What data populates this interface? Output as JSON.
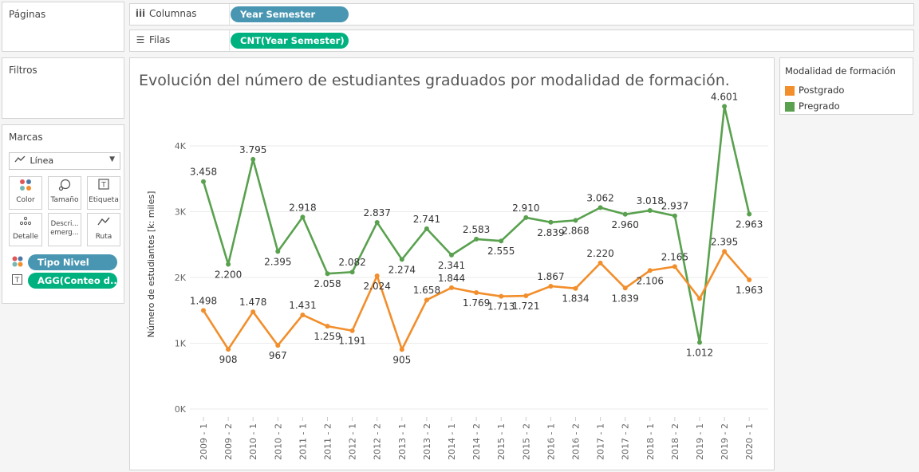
{
  "paginas": {
    "title": "Páginas"
  },
  "filtros": {
    "title": "Filtros"
  },
  "marcas": {
    "title": "Marcas",
    "mark_type": "Línea",
    "buttons": [
      {
        "icon": "color-icon",
        "label": "Color"
      },
      {
        "icon": "size-icon",
        "label": "Tamaño"
      },
      {
        "icon": "label-icon",
        "label": "Etiqueta"
      },
      {
        "icon": "detail-icon",
        "label": "Detalle"
      },
      {
        "icon": "tooltip-icon",
        "label": "Descri... emerg..."
      },
      {
        "icon": "path-icon",
        "label": "Ruta"
      }
    ],
    "fields": [
      {
        "icon": "color-icon",
        "label": "Tipo Nivel",
        "color": "#4996b2"
      },
      {
        "icon": "label-icon",
        "label": "AGG(Conteo d..",
        "color": "#00b180"
      }
    ]
  },
  "columnas": {
    "label": "Columnas",
    "pill": "Year Semester",
    "pill_color": "#4996b2"
  },
  "filas": {
    "label": "Filas",
    "pill": "CNT(Year Semester)",
    "pill_color": "#00b180"
  },
  "legend": {
    "title": "Modalidad de formación",
    "items": [
      {
        "label": "Postgrado",
        "color": "#f28e2b"
      },
      {
        "label": "Pregrado",
        "color": "#59a14f"
      }
    ]
  },
  "chart_data": {
    "type": "line",
    "title": "Evolución del número de estudiantes graduados por modalidad de formación.",
    "ylabel": "Número de estudiantes  [k: miles]",
    "xlabel": "",
    "ylim": [
      0,
      4800
    ],
    "yticks": [
      0,
      1000,
      2000,
      3000,
      4000
    ],
    "ytick_labels": [
      "0K",
      "1K",
      "2K",
      "3K",
      "4K"
    ],
    "grid": true,
    "legend_position": "right",
    "categories": [
      "2009 - 1",
      "2009 - 2",
      "2010 - 1",
      "2010 - 2",
      "2011 - 1",
      "2011 - 2",
      "2012 - 1",
      "2012 - 2",
      "2013 - 1",
      "2013 - 2",
      "2014 - 1",
      "2014 - 2",
      "2015 - 1",
      "2015 - 2",
      "2016 - 1",
      "2016 - 2",
      "2017 - 1",
      "2017 - 2",
      "2018 - 1",
      "2018 - 2",
      "2019 - 1",
      "2019 - 2",
      "2020 - 1"
    ],
    "series": [
      {
        "name": "Pregrado",
        "color": "#59a14f",
        "values": [
          3458,
          2200,
          3795,
          2395,
          2918,
          2058,
          2082,
          2837,
          2274,
          2741,
          2341,
          2583,
          2555,
          2910,
          2839,
          2868,
          3062,
          2960,
          3018,
          2937,
          1012,
          4601,
          2963
        ],
        "labels": [
          "3.458",
          "2.200",
          "3.795",
          "2.395",
          "2.918",
          "2.058",
          "2.082",
          "2.837",
          "2.274",
          "2.741",
          "2.341",
          "2.583",
          "2.555",
          "2.910",
          "2.839",
          "2.868",
          "3.062",
          "2.960",
          "3.018",
          "2.937",
          "1.012",
          "4.601",
          "2.963"
        ],
        "label_pos": [
          "above",
          "below",
          "above",
          "below",
          "above",
          "below",
          "above",
          "above",
          "below",
          "above",
          "below",
          "above",
          "below",
          "above",
          "below",
          "below",
          "above",
          "below",
          "above",
          "above",
          "below",
          "above",
          "below"
        ]
      },
      {
        "name": "Postgrado",
        "color": "#f28e2b",
        "values": [
          1498,
          908,
          1478,
          967,
          1431,
          1259,
          1191,
          2024,
          905,
          1658,
          1844,
          1769,
          1713,
          1721,
          1867,
          1834,
          2220,
          1839,
          2106,
          2165,
          1679,
          2395,
          1963
        ],
        "labels": [
          "1.498",
          "908",
          "1.478",
          "967",
          "1.431",
          "1.259",
          "1.191",
          "2.024",
          "905",
          "1.658",
          "1.844",
          "1.769",
          "1.713",
          "1.721",
          "1.867",
          "1.834",
          "2.220",
          "1.839",
          "2.106",
          "2.165",
          "",
          "2.395",
          "1.963"
        ],
        "label_pos": [
          "above",
          "below",
          "above",
          "below",
          "above",
          "below",
          "below",
          "below",
          "below",
          "above",
          "above",
          "below",
          "below",
          "below",
          "above",
          "below",
          "above",
          "below",
          "below",
          "above",
          "none",
          "above",
          "below"
        ]
      }
    ]
  }
}
